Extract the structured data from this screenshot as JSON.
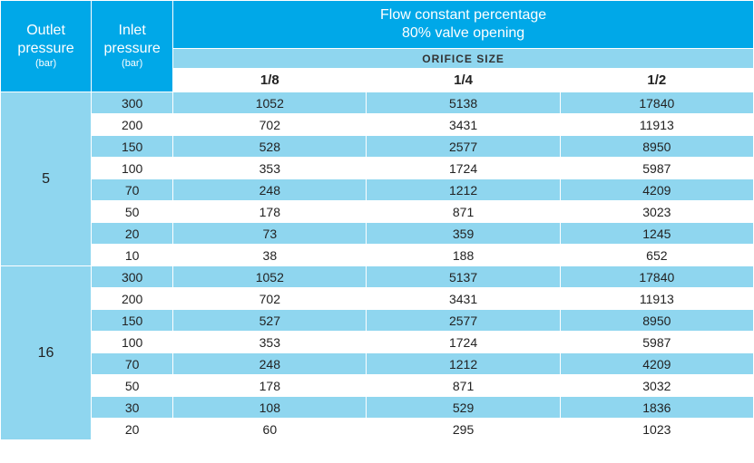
{
  "colors": {
    "header_blue": "#00a8e8",
    "band_light": "#8fd6ef",
    "band_white": "#ffffff",
    "text_white": "#ffffff",
    "text_dark": "#222222"
  },
  "header": {
    "outlet_label": "Outlet pressure",
    "outlet_unit": "(bar)",
    "inlet_label": "Inlet pressure",
    "inlet_unit": "(bar)",
    "flow_line1": "Flow constant percentage",
    "flow_line2": "80% valve opening",
    "orifice_label": "ORIFICE SIZE",
    "orifice_sizes": [
      "1/8",
      "1/4",
      "1/2"
    ]
  },
  "groups": [
    {
      "outlet": "5",
      "rows": [
        {
          "inlet": "300",
          "v": [
            "1052",
            "5138",
            "17840"
          ]
        },
        {
          "inlet": "200",
          "v": [
            "702",
            "3431",
            "11913"
          ]
        },
        {
          "inlet": "150",
          "v": [
            "528",
            "2577",
            "8950"
          ]
        },
        {
          "inlet": "100",
          "v": [
            "353",
            "1724",
            "5987"
          ]
        },
        {
          "inlet": "70",
          "v": [
            "248",
            "1212",
            "4209"
          ]
        },
        {
          "inlet": "50",
          "v": [
            "178",
            "871",
            "3023"
          ]
        },
        {
          "inlet": "20",
          "v": [
            "73",
            "359",
            "1245"
          ]
        },
        {
          "inlet": "10",
          "v": [
            "38",
            "188",
            "652"
          ]
        }
      ]
    },
    {
      "outlet": "16",
      "rows": [
        {
          "inlet": "300",
          "v": [
            "1052",
            "5137",
            "17840"
          ]
        },
        {
          "inlet": "200",
          "v": [
            "702",
            "3431",
            "11913"
          ]
        },
        {
          "inlet": "150",
          "v": [
            "527",
            "2577",
            "8950"
          ]
        },
        {
          "inlet": "100",
          "v": [
            "353",
            "1724",
            "5987"
          ]
        },
        {
          "inlet": "70",
          "v": [
            "248",
            "1212",
            "4209"
          ]
        },
        {
          "inlet": "50",
          "v": [
            "178",
            "871",
            "3032"
          ]
        },
        {
          "inlet": "30",
          "v": [
            "108",
            "529",
            "1836"
          ]
        },
        {
          "inlet": "20",
          "v": [
            "60",
            "295",
            "1023"
          ]
        }
      ]
    }
  ]
}
